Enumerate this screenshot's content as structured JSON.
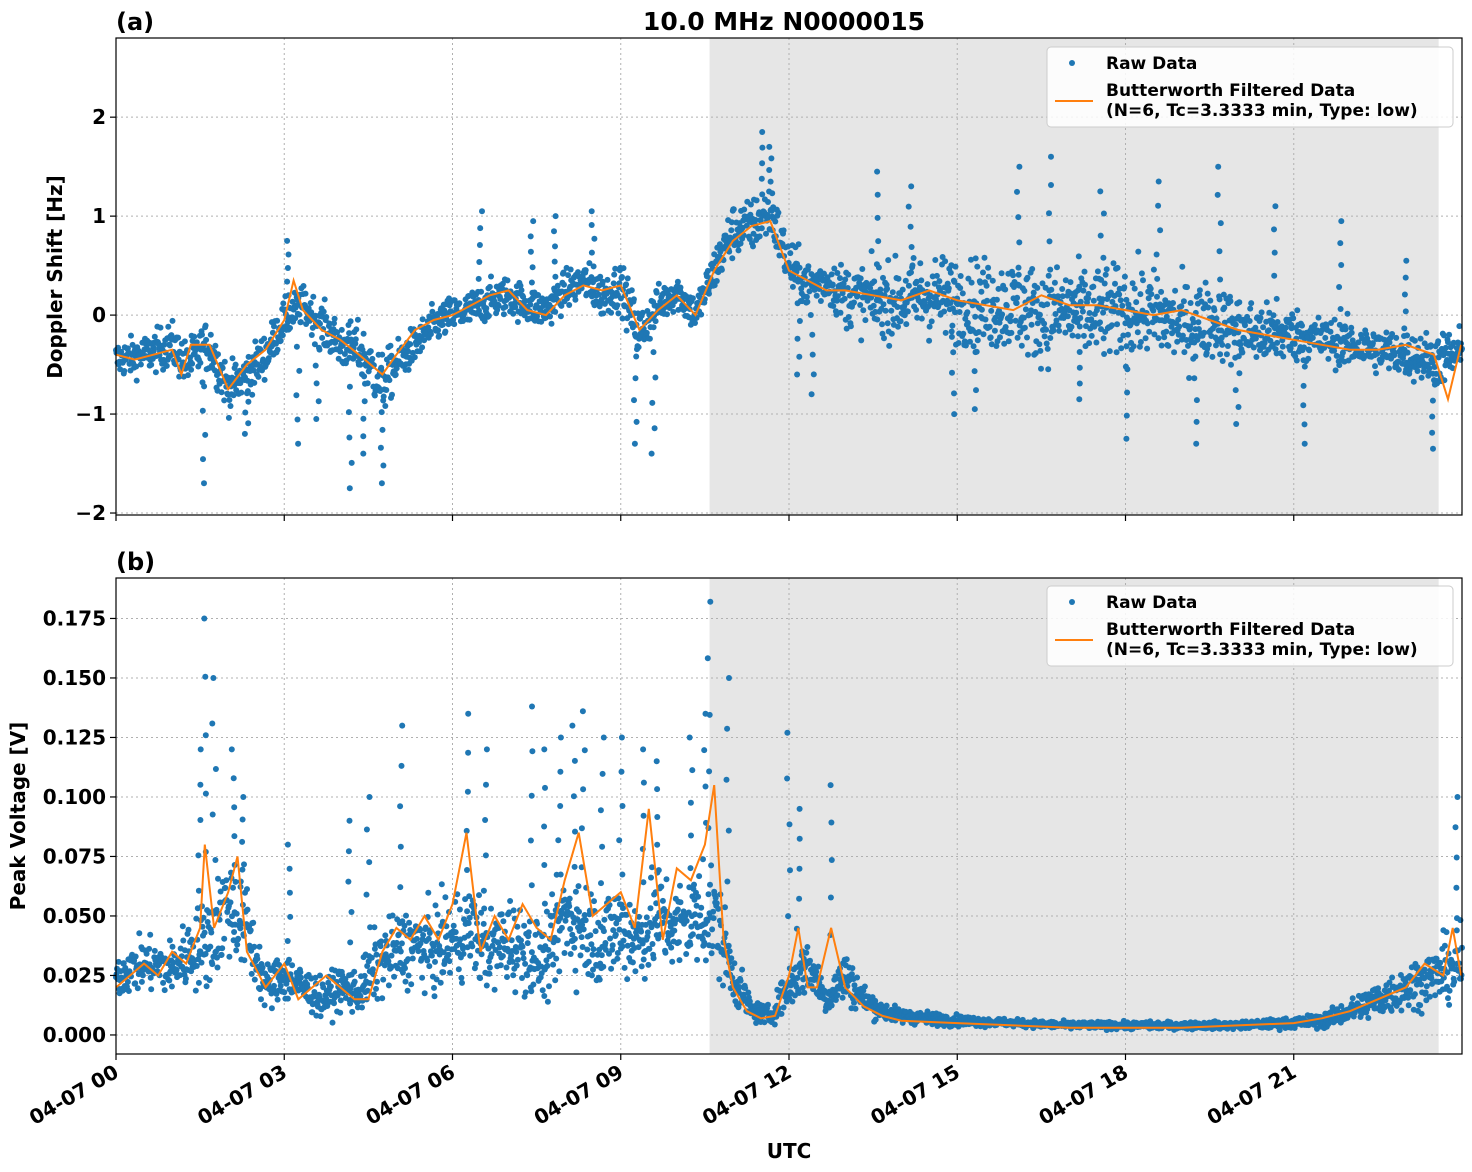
{
  "title": "10.0 MHz N0000015",
  "colors": {
    "raw": "#1f77b4",
    "filtered": "#ff7f0e",
    "night_shade": "#e6e6e6",
    "grid": "#b0b0b0"
  },
  "legend": {
    "raw_label": "Raw Data",
    "filtered_label_line1": "Butterworth Filtered Data",
    "filtered_label_line2": "(N=6, Tc=3.3333 min, Type: low)",
    "placement": "top-right"
  },
  "xlabel": "UTC",
  "x_tick_labels": [
    "04-07 00",
    "04-07 03",
    "04-07 06",
    "04-07 09",
    "04-07 12",
    "04-07 15",
    "04-07 18",
    "04-07 21"
  ],
  "chart_data": [
    {
      "panel_label": "(a)",
      "type": "scatter",
      "ylabel": "Doppler Shift [Hz]",
      "xlim": [
        "2024-04-07 00:00",
        "2024-04-08 00:00"
      ],
      "ylim": [
        -2.02,
        2.8
      ],
      "yticks": [
        2,
        1,
        0,
        -1,
        -2
      ],
      "ytick_labels": [
        "2",
        "1",
        "0",
        "−1",
        "−2"
      ],
      "grid": true,
      "shaded_span": [
        "2024-04-07 10:35",
        "2024-04-07 23:35"
      ],
      "series": [
        {
          "name": "Raw Data",
          "style": "points",
          "x": [
            "00:00",
            "00:30",
            "01:00",
            "01:15",
            "01:40",
            "02:00",
            "02:20",
            "02:40",
            "03:00",
            "03:20",
            "03:40",
            "04:00",
            "04:20",
            "04:45",
            "05:00",
            "05:20",
            "05:40",
            "06:00",
            "06:20",
            "06:40",
            "07:00",
            "07:20",
            "07:40",
            "08:00",
            "08:20",
            "08:40",
            "09:00",
            "09:20",
            "09:40",
            "10:00",
            "10:20",
            "10:40",
            "11:00",
            "11:20",
            "11:40",
            "12:00",
            "12:20",
            "12:40",
            "13:00",
            "13:30",
            "14:00",
            "14:30",
            "15:00",
            "15:30",
            "16:00",
            "16:30",
            "17:00",
            "17:30",
            "18:00",
            "18:30",
            "19:00",
            "19:30",
            "20:00",
            "20:30",
            "21:00",
            "21:30",
            "22:00",
            "22:30",
            "23:00",
            "23:30",
            "23:55"
          ],
          "y": [
            -0.45,
            -0.4,
            -0.3,
            -0.5,
            -0.3,
            -0.75,
            -0.6,
            -0.4,
            -0.05,
            0.1,
            -0.1,
            -0.3,
            -0.35,
            -0.7,
            -0.5,
            -0.3,
            -0.1,
            0.0,
            0.05,
            0.15,
            0.2,
            0.1,
            0.05,
            0.25,
            0.35,
            0.2,
            0.3,
            -0.2,
            0.1,
            0.25,
            0.0,
            0.45,
            0.85,
            0.9,
            1.05,
            0.5,
            0.3,
            0.35,
            0.2,
            0.15,
            0.15,
            0.2,
            0.15,
            0.1,
            0.1,
            0.0,
            0.05,
            0.0,
            0.05,
            0.0,
            -0.1,
            -0.05,
            -0.15,
            -0.2,
            -0.2,
            -0.25,
            -0.3,
            -0.35,
            -0.4,
            -0.45,
            -0.4
          ],
          "spread": [
            0.25,
            0.25,
            0.3,
            0.3,
            0.35,
            0.3,
            0.3,
            0.3,
            0.25,
            0.25,
            0.3,
            0.3,
            0.35,
            0.4,
            0.3,
            0.25,
            0.25,
            0.25,
            0.25,
            0.25,
            0.25,
            0.25,
            0.25,
            0.25,
            0.25,
            0.3,
            0.3,
            0.35,
            0.25,
            0.25,
            0.25,
            0.3,
            0.35,
            0.35,
            0.35,
            0.35,
            0.3,
            0.3,
            0.4,
            0.45,
            0.5,
            0.55,
            0.55,
            0.6,
            0.6,
            0.6,
            0.6,
            0.6,
            0.6,
            0.55,
            0.55,
            0.5,
            0.45,
            0.4,
            0.35,
            0.3,
            0.3,
            0.3,
            0.3,
            0.35,
            0.35
          ],
          "outliers_x": [
            "01:35",
            "02:20",
            "03:05",
            "03:15",
            "03:35",
            "04:10",
            "04:25",
            "04:45",
            "06:30",
            "07:25",
            "07:50",
            "08:30",
            "09:15",
            "09:35",
            "11:30",
            "11:40",
            "12:10",
            "12:25",
            "13:35",
            "14:10",
            "14:55",
            "15:20",
            "16:05",
            "16:40",
            "17:10",
            "17:35",
            "18:00",
            "18:35",
            "19:15",
            "19:40",
            "20:00",
            "20:40",
            "21:10",
            "21:50",
            "23:00",
            "23:30"
          ],
          "outliers_y": [
            -1.7,
            -1.2,
            0.75,
            -1.3,
            -1.05,
            -1.75,
            -1.4,
            -1.7,
            1.05,
            0.95,
            1.0,
            1.05,
            -1.3,
            -1.4,
            1.85,
            1.7,
            -0.6,
            -0.8,
            1.45,
            1.3,
            -1.0,
            -0.95,
            1.5,
            1.6,
            -0.85,
            1.25,
            -1.25,
            1.35,
            -1.3,
            1.5,
            -1.1,
            1.1,
            -1.3,
            0.95,
            0.55,
            -1.35
          ]
        },
        {
          "name": "Butterworth Filtered Data (N=6, Tc=3.3333 min, Type: low)",
          "style": "line",
          "x": [
            "00:00",
            "00:20",
            "00:40",
            "01:00",
            "01:10",
            "01:20",
            "01:40",
            "02:00",
            "02:20",
            "02:40",
            "03:00",
            "03:10",
            "03:20",
            "03:40",
            "04:00",
            "04:20",
            "04:45",
            "05:00",
            "05:20",
            "05:40",
            "06:00",
            "06:20",
            "06:40",
            "07:00",
            "07:20",
            "07:40",
            "08:00",
            "08:20",
            "08:40",
            "09:00",
            "09:20",
            "09:40",
            "10:00",
            "10:20",
            "10:40",
            "11:00",
            "11:20",
            "11:40",
            "12:00",
            "12:20",
            "12:40",
            "13:00",
            "13:30",
            "14:00",
            "14:30",
            "15:00",
            "15:30",
            "16:00",
            "16:30",
            "17:00",
            "17:30",
            "18:00",
            "18:30",
            "19:00",
            "19:30",
            "20:00",
            "20:30",
            "21:00",
            "21:30",
            "22:00",
            "22:30",
            "23:00",
            "23:30",
            "23:45",
            "23:59"
          ],
          "y": [
            -0.4,
            -0.45,
            -0.4,
            -0.35,
            -0.6,
            -0.3,
            -0.3,
            -0.75,
            -0.5,
            -0.35,
            -0.05,
            0.35,
            0.05,
            -0.15,
            -0.25,
            -0.4,
            -0.6,
            -0.4,
            -0.15,
            -0.05,
            0.0,
            0.1,
            0.2,
            0.25,
            0.05,
            0.0,
            0.2,
            0.3,
            0.25,
            0.3,
            -0.15,
            0.05,
            0.2,
            0.0,
            0.45,
            0.75,
            0.9,
            0.95,
            0.45,
            0.35,
            0.25,
            0.25,
            0.2,
            0.15,
            0.25,
            0.15,
            0.1,
            0.05,
            0.2,
            0.1,
            0.1,
            0.05,
            0.0,
            0.05,
            -0.05,
            -0.15,
            -0.2,
            -0.25,
            -0.3,
            -0.35,
            -0.35,
            -0.3,
            -0.4,
            -0.85,
            -0.3
          ]
        }
      ]
    },
    {
      "panel_label": "(b)",
      "type": "scatter",
      "ylabel": "Peak Voltage [V]",
      "xlim": [
        "2024-04-07 00:00",
        "2024-04-08 00:00"
      ],
      "ylim": [
        -0.008,
        0.192
      ],
      "yticks": [
        0.175,
        0.15,
        0.125,
        0.1,
        0.075,
        0.05,
        0.025,
        0.0
      ],
      "ytick_labels": [
        "0.175",
        "0.150",
        "0.125",
        "0.100",
        "0.075",
        "0.050",
        "0.025",
        "0.000"
      ],
      "grid": true,
      "shaded_span": [
        "2024-04-07 10:35",
        "2024-04-07 23:35"
      ],
      "series": [
        {
          "name": "Raw Data",
          "style": "points",
          "x": [
            "00:00",
            "00:30",
            "01:00",
            "01:20",
            "01:40",
            "02:00",
            "02:20",
            "02:40",
            "03:00",
            "03:20",
            "03:40",
            "04:00",
            "04:20",
            "04:40",
            "05:00",
            "05:20",
            "05:40",
            "06:00",
            "06:20",
            "06:40",
            "07:00",
            "07:20",
            "07:40",
            "08:00",
            "08:20",
            "08:40",
            "09:00",
            "09:20",
            "09:40",
            "10:00",
            "10:20",
            "10:40",
            "11:00",
            "11:20",
            "11:40",
            "12:00",
            "12:20",
            "12:40",
            "13:00",
            "13:20",
            "13:40",
            "14:00",
            "15:00",
            "16:00",
            "17:00",
            "18:00",
            "19:00",
            "20:00",
            "21:00",
            "21:30",
            "22:00",
            "22:30",
            "23:00",
            "23:30",
            "23:59"
          ],
          "y": [
            0.025,
            0.03,
            0.028,
            0.035,
            0.04,
            0.055,
            0.045,
            0.02,
            0.025,
            0.02,
            0.015,
            0.02,
            0.018,
            0.03,
            0.035,
            0.038,
            0.035,
            0.04,
            0.045,
            0.035,
            0.04,
            0.035,
            0.03,
            0.05,
            0.045,
            0.04,
            0.045,
            0.04,
            0.05,
            0.045,
            0.05,
            0.05,
            0.025,
            0.01,
            0.008,
            0.02,
            0.03,
            0.015,
            0.025,
            0.015,
            0.01,
            0.008,
            0.006,
            0.005,
            0.004,
            0.004,
            0.004,
            0.004,
            0.005,
            0.006,
            0.01,
            0.015,
            0.02,
            0.025,
            0.03
          ],
          "spread": [
            0.012,
            0.014,
            0.015,
            0.02,
            0.025,
            0.03,
            0.025,
            0.012,
            0.015,
            0.012,
            0.01,
            0.012,
            0.012,
            0.02,
            0.02,
            0.022,
            0.022,
            0.025,
            0.025,
            0.022,
            0.025,
            0.022,
            0.02,
            0.03,
            0.028,
            0.025,
            0.028,
            0.025,
            0.028,
            0.025,
            0.028,
            0.03,
            0.015,
            0.006,
            0.005,
            0.012,
            0.015,
            0.008,
            0.015,
            0.008,
            0.005,
            0.004,
            0.003,
            0.002,
            0.002,
            0.002,
            0.002,
            0.002,
            0.003,
            0.004,
            0.006,
            0.01,
            0.012,
            0.015,
            0.02
          ],
          "outliers_x": [
            "01:30",
            "01:35",
            "01:45",
            "02:05",
            "02:15",
            "03:05",
            "04:10",
            "04:30",
            "05:05",
            "06:15",
            "06:35",
            "07:25",
            "07:40",
            "07:55",
            "08:10",
            "08:20",
            "08:40",
            "09:00",
            "09:25",
            "09:40",
            "10:15",
            "10:30",
            "10:35",
            "10:55",
            "12:00",
            "12:10",
            "12:45",
            "23:55"
          ],
          "outliers_y": [
            0.12,
            0.175,
            0.15,
            0.12,
            0.1,
            0.08,
            0.09,
            0.1,
            0.13,
            0.135,
            0.12,
            0.138,
            0.12,
            0.125,
            0.13,
            0.136,
            0.125,
            0.125,
            0.12,
            0.115,
            0.125,
            0.135,
            0.182,
            0.15,
            0.127,
            0.095,
            0.105,
            0.1
          ]
        },
        {
          "name": "Butterworth Filtered Data (N=6, Tc=3.3333 min, Type: low)",
          "style": "line",
          "x": [
            "00:00",
            "00:15",
            "00:30",
            "00:45",
            "01:00",
            "01:15",
            "01:30",
            "01:35",
            "01:45",
            "02:00",
            "02:10",
            "02:20",
            "02:40",
            "03:00",
            "03:15",
            "03:30",
            "03:45",
            "04:00",
            "04:15",
            "04:30",
            "04:45",
            "05:00",
            "05:15",
            "05:30",
            "05:45",
            "06:00",
            "06:15",
            "06:30",
            "06:45",
            "07:00",
            "07:15",
            "07:30",
            "07:45",
            "08:00",
            "08:15",
            "08:30",
            "08:45",
            "09:00",
            "09:15",
            "09:30",
            "09:45",
            "10:00",
            "10:15",
            "10:30",
            "10:40",
            "10:50",
            "11:00",
            "11:15",
            "11:30",
            "11:45",
            "12:00",
            "12:10",
            "12:20",
            "12:30",
            "12:45",
            "13:00",
            "13:20",
            "13:40",
            "14:00",
            "15:00",
            "16:00",
            "17:00",
            "18:00",
            "19:00",
            "20:00",
            "21:00",
            "21:30",
            "22:00",
            "22:30",
            "23:00",
            "23:20",
            "23:40",
            "23:50",
            "23:59"
          ],
          "y": [
            0.02,
            0.025,
            0.03,
            0.025,
            0.035,
            0.03,
            0.045,
            0.08,
            0.045,
            0.06,
            0.075,
            0.035,
            0.02,
            0.03,
            0.015,
            0.02,
            0.025,
            0.02,
            0.015,
            0.015,
            0.035,
            0.045,
            0.04,
            0.05,
            0.04,
            0.055,
            0.085,
            0.035,
            0.05,
            0.04,
            0.055,
            0.045,
            0.04,
            0.065,
            0.085,
            0.05,
            0.055,
            0.06,
            0.045,
            0.095,
            0.04,
            0.07,
            0.065,
            0.08,
            0.105,
            0.04,
            0.02,
            0.01,
            0.007,
            0.008,
            0.025,
            0.045,
            0.02,
            0.02,
            0.045,
            0.02,
            0.012,
            0.008,
            0.006,
            0.005,
            0.004,
            0.003,
            0.003,
            0.003,
            0.004,
            0.005,
            0.007,
            0.01,
            0.015,
            0.02,
            0.03,
            0.025,
            0.045,
            0.025
          ]
        }
      ]
    }
  ]
}
